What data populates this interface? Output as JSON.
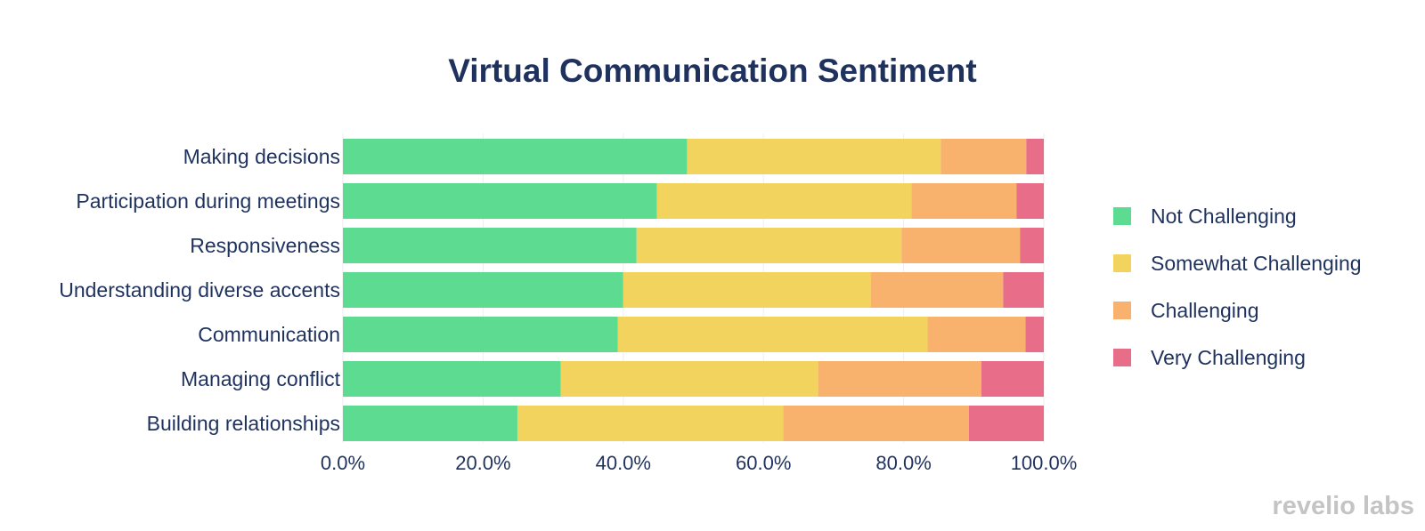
{
  "chart_data": {
    "type": "bar",
    "orientation": "horizontal",
    "stacked": true,
    "title": "Virtual Communication Sentiment",
    "xlabel": "",
    "ylabel": "",
    "xlim": [
      0,
      100
    ],
    "x_ticks": [
      0,
      20,
      40,
      60,
      80,
      100
    ],
    "x_tick_labels": [
      "0.0%",
      "20.0%",
      "40.0%",
      "60.0%",
      "80.0%",
      "100.0%"
    ],
    "categories": [
      "Making decisions",
      "Participation during meetings",
      "Responsiveness",
      "Understanding diverse accents",
      "Communication",
      "Managing conflict",
      "Building relationships"
    ],
    "series": [
      {
        "name": "Not Challenging",
        "color": "#5ddc91",
        "values": [
          49.1,
          44.8,
          41.9,
          40.0,
          39.2,
          31.1,
          24.9
        ]
      },
      {
        "name": "Somewhat Challenging",
        "color": "#f2d35e",
        "values": [
          36.2,
          36.3,
          37.8,
          35.3,
          44.2,
          36.7,
          37.9
        ]
      },
      {
        "name": "Challenging",
        "color": "#f8b26d",
        "values": [
          12.2,
          15.0,
          16.9,
          18.9,
          14.0,
          23.3,
          26.5
        ]
      },
      {
        "name": "Very Challenging",
        "color": "#e86d88",
        "values": [
          2.5,
          3.9,
          3.4,
          5.8,
          2.6,
          8.9,
          10.7
        ]
      }
    ],
    "legend": "right",
    "grid": true
  },
  "watermark": "revelio labs"
}
